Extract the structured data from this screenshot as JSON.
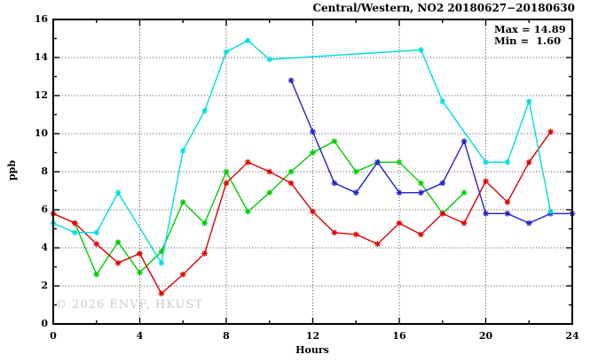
{
  "watermark": "© 2026 ENVF, HKUST",
  "chart_data": {
    "type": "line",
    "title": "Central/Western, NO2 20180627−20180630",
    "xlabel": "Hours",
    "ylabel": "ppb",
    "xlim": [
      0,
      24
    ],
    "ylim": [
      0,
      16
    ],
    "xticks": [
      0,
      4,
      8,
      12,
      16,
      20,
      24
    ],
    "yticks": [
      0,
      2,
      4,
      6,
      8,
      10,
      12,
      14,
      16
    ],
    "grid": true,
    "legend_position": "none",
    "annotations": {
      "max_label": "Max = 14.89",
      "min_label": "Min =  1.60",
      "max_value": 14.89,
      "min_value": 1.6
    },
    "series": [
      {
        "name": "green-day",
        "color": "#00cc00",
        "points": [
          [
            1,
            5.3
          ],
          [
            2,
            2.6
          ],
          [
            3,
            4.3
          ],
          [
            4,
            2.7
          ],
          [
            5,
            3.8
          ],
          [
            6,
            6.4
          ],
          [
            7,
            5.3
          ],
          [
            8,
            8.0
          ],
          [
            9,
            5.9
          ],
          [
            10,
            6.9
          ],
          [
            11,
            8.0
          ],
          [
            12,
            9.0
          ],
          [
            13,
            9.6
          ],
          [
            14,
            8.0
          ],
          [
            15,
            8.5
          ],
          [
            16,
            8.5
          ],
          [
            17,
            7.4
          ],
          [
            18,
            5.8
          ],
          [
            19,
            6.9
          ]
        ]
      },
      {
        "name": "red-day",
        "color": "#dd0000",
        "points": [
          [
            0,
            5.8
          ],
          [
            1,
            5.3
          ],
          [
            2,
            4.2
          ],
          [
            3,
            3.2
          ],
          [
            4,
            3.7
          ],
          [
            5,
            1.6
          ],
          [
            6,
            2.6
          ],
          [
            7,
            3.7
          ],
          [
            8,
            7.4
          ],
          [
            9,
            8.5
          ],
          [
            10,
            8.0
          ],
          [
            11,
            7.4
          ],
          [
            12,
            5.9
          ],
          [
            13,
            4.8
          ],
          [
            14,
            4.7
          ],
          [
            15,
            4.2
          ],
          [
            16,
            5.3
          ],
          [
            17,
            4.7
          ],
          [
            18,
            5.8
          ],
          [
            19,
            5.3
          ],
          [
            20,
            7.5
          ],
          [
            21,
            6.4
          ],
          [
            22,
            8.5
          ],
          [
            23,
            10.1
          ]
        ]
      },
      {
        "name": "blue-day",
        "color": "#2222cc",
        "points": [
          [
            11,
            12.8
          ],
          [
            12,
            10.1
          ],
          [
            13,
            7.4
          ],
          [
            14,
            6.9
          ],
          [
            15,
            8.5
          ],
          [
            16,
            6.9
          ],
          [
            17,
            6.9
          ],
          [
            18,
            7.4
          ],
          [
            19,
            9.6
          ],
          [
            20,
            5.8
          ],
          [
            21,
            5.8
          ],
          [
            22,
            5.3
          ],
          [
            23,
            5.8
          ],
          [
            24,
            5.8
          ]
        ]
      },
      {
        "name": "cyan-day",
        "color": "#00dddd",
        "points": [
          [
            0,
            5.3
          ],
          [
            1,
            4.8
          ],
          [
            2,
            4.8
          ],
          [
            3,
            6.9
          ],
          [
            5,
            3.2
          ],
          [
            6,
            9.1
          ],
          [
            7,
            11.2
          ],
          [
            8,
            14.3
          ],
          [
            9,
            14.89
          ],
          [
            10,
            13.9
          ],
          [
            17,
            14.4
          ],
          [
            18,
            11.7
          ],
          [
            20,
            8.5
          ],
          [
            21,
            8.5
          ],
          [
            22,
            11.7
          ],
          [
            23,
            5.9
          ]
        ]
      }
    ]
  }
}
